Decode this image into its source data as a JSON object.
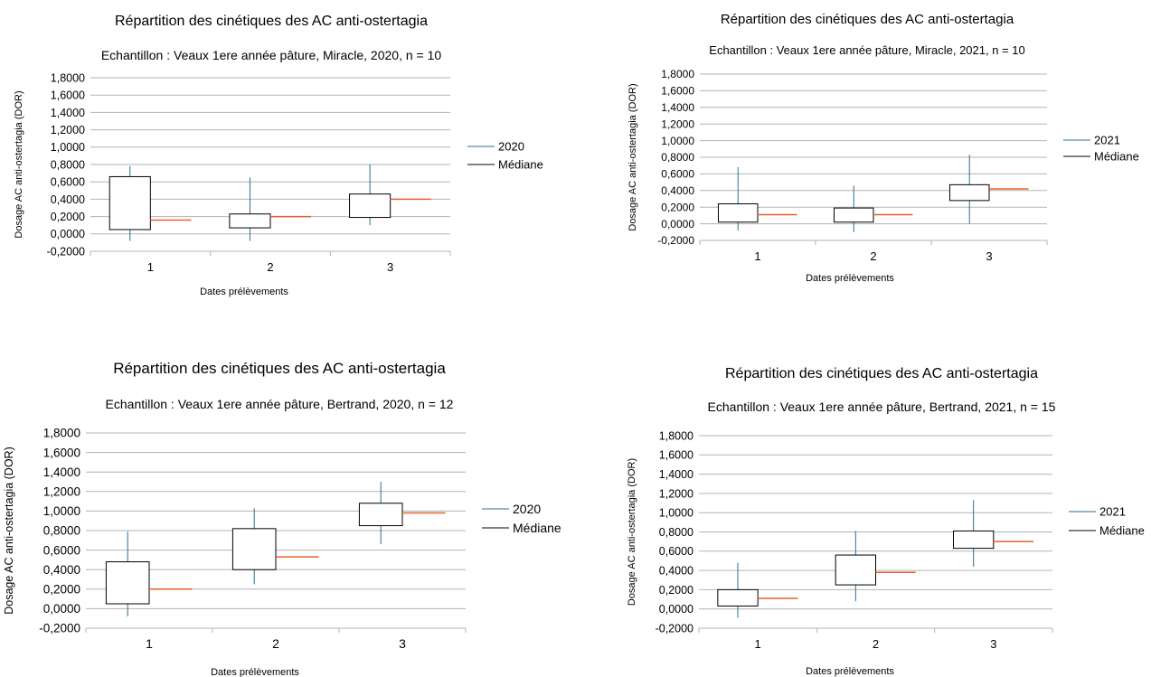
{
  "chart_data": [
    {
      "type": "box",
      "title": "Répartition des cinétiques des AC anti-ostertagia",
      "subtitle": "Echantillon : Veaux 1ere année pâture, Miracle, 2020, n = 10",
      "xlabel": "Dates prélèvements",
      "ylabel": "Dosage AC anti-ostertagia (DOR)",
      "categories": [
        "1",
        "2",
        "3"
      ],
      "yticks": [
        "-0,2000",
        "0,0000",
        "0,2000",
        "0,4000",
        "0,6000",
        "0,8000",
        "1,0000",
        "1,2000",
        "1,4000",
        "1,6000",
        "1,8000"
      ],
      "ylim": [
        -0.2,
        1.8
      ],
      "grid": true,
      "legend_position": "right",
      "legend": [
        "2020",
        "Médiane"
      ],
      "boxes": [
        {
          "min": -0.08,
          "q1": 0.05,
          "q3": 0.66,
          "max": 0.78,
          "median": 0.16
        },
        {
          "min": -0.08,
          "q1": 0.07,
          "q3": 0.23,
          "max": 0.65,
          "median": 0.2
        },
        {
          "min": 0.1,
          "q1": 0.19,
          "q3": 0.46,
          "max": 0.8,
          "median": 0.4
        }
      ]
    },
    {
      "type": "box",
      "title": "Répartition des cinétiques des AC anti-ostertagia",
      "subtitle": "Echantillon : Veaux 1ere année pâture, Miracle, 2021, n = 10",
      "xlabel": "Dates prélèvements",
      "ylabel": "Dosage AC anti-ostertagia (DOR)",
      "categories": [
        "1",
        "2",
        "3"
      ],
      "yticks": [
        "-0,2000",
        "0,0000",
        "0,2000",
        "0,4000",
        "0,6000",
        "0,8000",
        "1,0000",
        "1,2000",
        "1,4000",
        "1,6000",
        "1,8000"
      ],
      "ylim": [
        -0.2,
        1.8
      ],
      "grid": true,
      "legend_position": "right",
      "legend": [
        "2021",
        "Médiane"
      ],
      "boxes": [
        {
          "min": -0.08,
          "q1": 0.02,
          "q3": 0.24,
          "max": 0.68,
          "median": 0.11
        },
        {
          "min": -0.1,
          "q1": 0.02,
          "q3": 0.19,
          "max": 0.46,
          "median": 0.11
        },
        {
          "min": 0.0,
          "q1": 0.28,
          "q3": 0.47,
          "max": 0.83,
          "median": 0.42
        }
      ]
    },
    {
      "type": "box",
      "title": "Répartition des cinétiques des AC anti-ostertagia",
      "subtitle": "Echantillon : Veaux 1ere année pâture, Bertrand, 2020, n = 12",
      "xlabel": "Dates prélèvements",
      "ylabel": "Dosage AC anti-ostertagia (DOR)",
      "categories": [
        "1",
        "2",
        "3"
      ],
      "yticks": [
        "-0,2000",
        "0,0000",
        "0,2000",
        "0,4000",
        "0,6000",
        "0,8000",
        "1,0000",
        "1,2000",
        "1,4000",
        "1,6000",
        "1,8000"
      ],
      "ylim": [
        -0.2,
        1.8
      ],
      "grid": true,
      "legend_position": "right",
      "legend": [
        "2020",
        "Médiane"
      ],
      "boxes": [
        {
          "min": -0.08,
          "q1": 0.05,
          "q3": 0.48,
          "max": 0.79,
          "median": 0.2
        },
        {
          "min": 0.25,
          "q1": 0.4,
          "q3": 0.82,
          "max": 1.03,
          "median": 0.53
        },
        {
          "min": 0.66,
          "q1": 0.85,
          "q3": 1.08,
          "max": 1.3,
          "median": 0.98
        }
      ]
    },
    {
      "type": "box",
      "title": "Répartition des cinétiques des AC anti-ostertagia",
      "subtitle": "Echantillon : Veaux 1ere année pâture, Bertrand, 2021, n = 15",
      "xlabel": "Dates prélèvements",
      "ylabel": "Dosage AC anti-ostertagia (DOR)",
      "categories": [
        "1",
        "2",
        "3"
      ],
      "yticks": [
        "-0,2000",
        "0,0000",
        "0,2000",
        "0,4000",
        "0,6000",
        "0,8000",
        "1,0000",
        "1,2000",
        "1,4000",
        "1,6000",
        "1,8000"
      ],
      "ylim": [
        -0.2,
        1.8
      ],
      "grid": true,
      "legend_position": "right",
      "legend": [
        "2021",
        "Médiane"
      ],
      "boxes": [
        {
          "min": -0.09,
          "q1": 0.03,
          "q3": 0.2,
          "max": 0.48,
          "median": 0.11
        },
        {
          "min": 0.08,
          "q1": 0.25,
          "q3": 0.56,
          "max": 0.81,
          "median": 0.38
        },
        {
          "min": 0.44,
          "q1": 0.63,
          "q3": 0.81,
          "max": 1.13,
          "median": 0.7
        }
      ]
    }
  ],
  "colors": {
    "whisker": "#2a6f97",
    "median": "#e8602c",
    "grid": "#b3b3b3",
    "box_border": "#000000",
    "legend_median_line": "#000000"
  }
}
